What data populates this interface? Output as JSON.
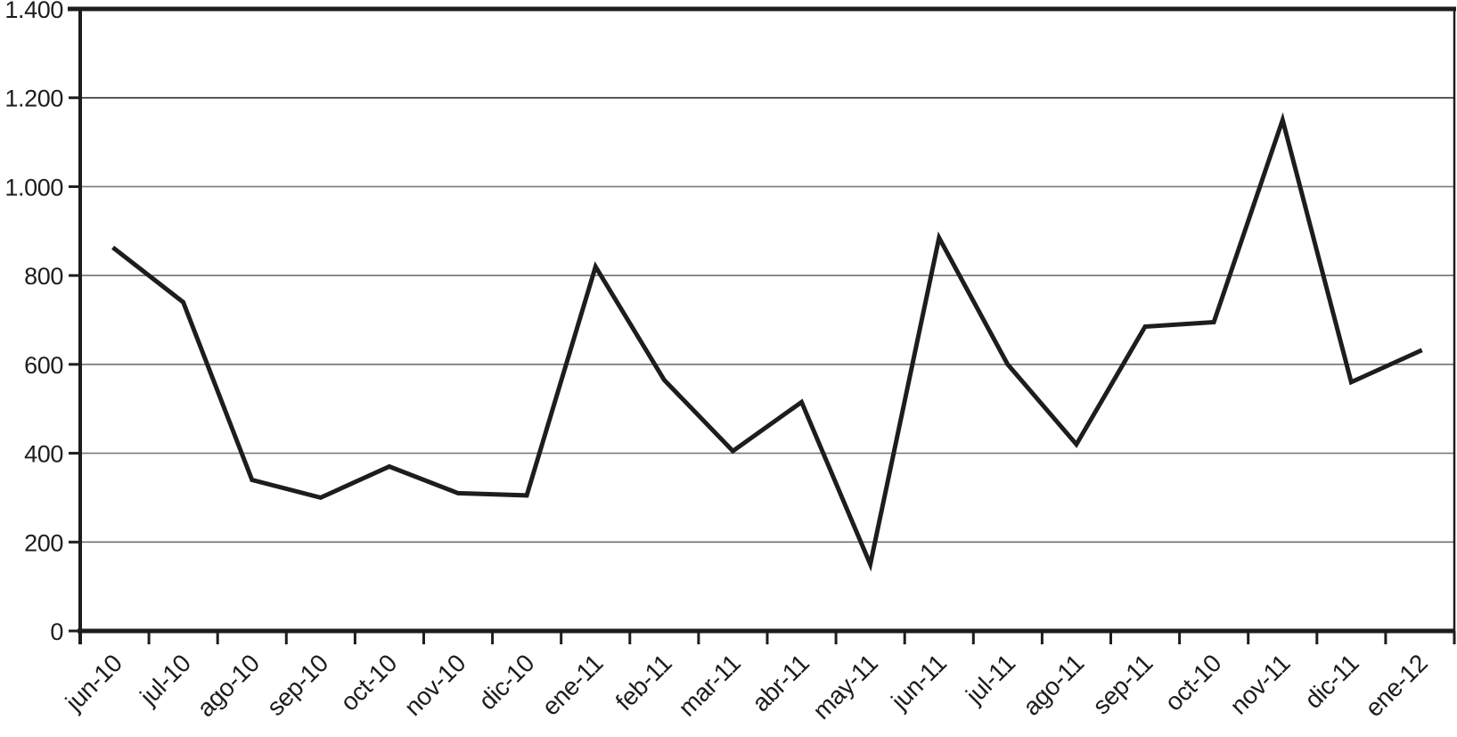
{
  "chart_data": {
    "type": "line",
    "title": "",
    "xlabel": "",
    "ylabel": "",
    "categories": [
      "jun-10",
      "jul-10",
      "ago-10",
      "sep-10",
      "oct-10",
      "nov-10",
      "dic-10",
      "ene-11",
      "feb-11",
      "mar-11",
      "abr-11",
      "may-11",
      "jun-11",
      "jul-11",
      "ago-11",
      "sep-11",
      "oct-10",
      "nov-11",
      "dic-11",
      "ene-12"
    ],
    "values": [
      860,
      740,
      340,
      300,
      370,
      310,
      305,
      820,
      565,
      405,
      515,
      150,
      885,
      600,
      420,
      685,
      695,
      1150,
      560,
      630
    ],
    "ylim": [
      0,
      1400
    ],
    "ytick_step": 200,
    "ytick_labels": [
      "0",
      "200",
      "400",
      "600",
      "800",
      "1.000",
      "1.200",
      "1.400"
    ],
    "grid": true,
    "legend": "none",
    "series_count": 1,
    "line_color": "#1d1d1b",
    "grid_color": "#7a7a7a",
    "grid_color_dark": "#3c3c3c",
    "text_color": "#1d1d1b",
    "background": "#ffffff"
  }
}
